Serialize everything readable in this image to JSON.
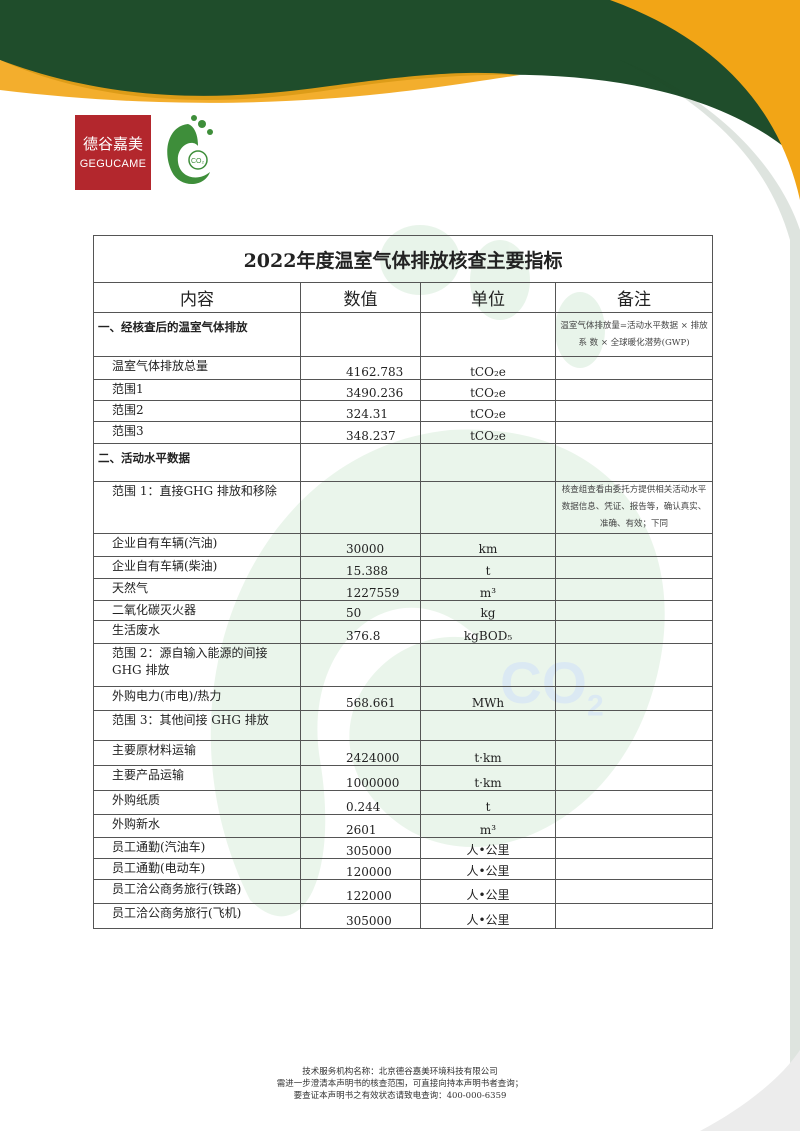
{
  "brand": {
    "logo_cn": "德谷嘉美",
    "logo_en": "GEGUCAME",
    "logo_co2": "CO₂",
    "watermark": "CO",
    "colors": {
      "green": "#1f4d2b",
      "orange": "#f2a516",
      "red": "#b3272d"
    }
  },
  "table": {
    "title": "2022年度温室气体排放核查主要指标",
    "headers": [
      "内容",
      "数值",
      "单位",
      "备注"
    ],
    "rows": [
      {
        "type": "section",
        "label": "一、经核查后的温室气体排放",
        "value": "",
        "unit": "",
        "note": "温室气体排放量=活动水平数据 × 排放 系 数 × 全球暖化潜势(GWP)",
        "h": 44
      },
      {
        "type": "item",
        "label": "温室气体排放总量",
        "value": "4162.783",
        "unit": "tCO₂e",
        "note": "",
        "h": 23
      },
      {
        "type": "item",
        "label": "范围1",
        "value": "3490.236",
        "unit": "tCO₂e",
        "note": "",
        "h": 21
      },
      {
        "type": "item",
        "label": "范围2",
        "value": "324.31",
        "unit": "tCO₂e",
        "note": "",
        "h": 21
      },
      {
        "type": "item",
        "label": "范围3",
        "value": "348.237",
        "unit": "tCO₂e",
        "note": "",
        "h": 22
      },
      {
        "type": "section",
        "label": "二、活动水平数据",
        "value": "",
        "unit": "",
        "note": "",
        "h": 38
      },
      {
        "type": "item",
        "label": "范围 1：直接GHG 排放和移除",
        "value": "",
        "unit": "",
        "note": "核查组查看由委托方提供相关活动水平数据信息、凭证、报告等，确认真实、准确、有效；下同",
        "h": 52
      },
      {
        "type": "item",
        "label": "企业自有车辆(汽油)",
        "value": "30000",
        "unit": "km",
        "note": "",
        "h": 23
      },
      {
        "type": "item",
        "label": "企业自有车辆(柴油)",
        "value": "15.388",
        "unit": "t",
        "note": "",
        "h": 22
      },
      {
        "type": "item",
        "label": "天然气",
        "value": "1227559",
        "unit": "m³",
        "note": "",
        "h": 22
      },
      {
        "type": "item",
        "label": "二氧化碳灭火器",
        "value": "50",
        "unit": "kg",
        "note": "",
        "h": 20
      },
      {
        "type": "item",
        "label": "生活废水",
        "value": "376.8",
        "unit": "kgBOD₅",
        "note": "",
        "h": 23
      },
      {
        "type": "item",
        "label": "范围 2：源自输入能源的间接GHG 排放",
        "value": "",
        "unit": "",
        "note": "",
        "h": 43
      },
      {
        "type": "item",
        "label": "外购电力(市电)/热力",
        "value": "568.661",
        "unit": "MWh",
        "note": "",
        "h": 24
      },
      {
        "type": "item",
        "label": "范围 3：其他间接 GHG 排放",
        "value": "",
        "unit": "",
        "note": "",
        "h": 30
      },
      {
        "type": "item",
        "label": "主要原材料运输",
        "value": "2424000",
        "unit": "t·km",
        "note": "",
        "h": 25
      },
      {
        "type": "item",
        "label": "主要产品运输",
        "value": "1000000",
        "unit": "t·km",
        "note": "",
        "h": 25
      },
      {
        "type": "item",
        "label": "外购纸质",
        "value": "0.244",
        "unit": "t",
        "note": "",
        "h": 24
      },
      {
        "type": "item",
        "label": "外购新水",
        "value": "2601",
        "unit": "m³",
        "note": "",
        "h": 23
      },
      {
        "type": "item",
        "label": "员工通勤(汽油车)",
        "value": "305000",
        "unit": "人•公里",
        "note": "",
        "h": 21
      },
      {
        "type": "item",
        "label": "员工通勤(电动车)",
        "value": "120000",
        "unit": "人•公里",
        "note": "",
        "h": 21
      },
      {
        "type": "item",
        "label": "员工洽公商务旅行(铁路)",
        "value": "122000",
        "unit": "人•公里",
        "note": "",
        "h": 24
      },
      {
        "type": "item",
        "label": "员工洽公商务旅行(飞机)",
        "value": "305000",
        "unit": "人•公里",
        "note": "",
        "h": 25
      }
    ]
  },
  "footer": {
    "line1": "技术服务机构名称：北京德谷嘉美环境科技有限公司",
    "line2": "需进一步澄清本声明书的核查范围，可直接向持本声明书者查询；",
    "line3": "要查证本声明书之有效状态请致电查询：400-000-6359"
  }
}
